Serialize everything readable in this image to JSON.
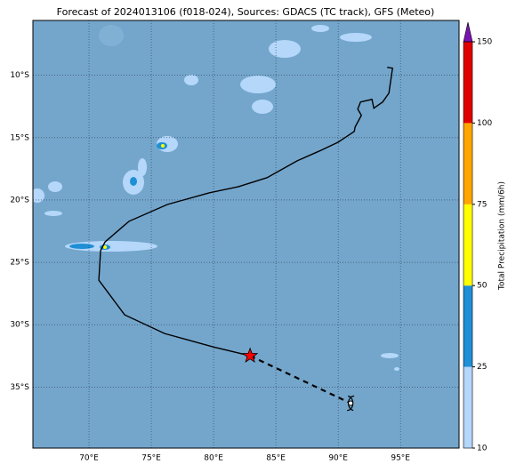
{
  "chart_data": {
    "type": "map",
    "title": "Forecast of 2024013106 (f018-024), Sources: GDACS (TC track), GFS (Meteo)",
    "xlim": [
      65.5,
      99.7
    ],
    "ylim": [
      -39.9,
      -5.6
    ],
    "xticks": [
      {
        "value": 70,
        "label": "70°E"
      },
      {
        "value": 75,
        "label": "75°E"
      },
      {
        "value": 80,
        "label": "80°E"
      },
      {
        "value": 85,
        "label": "85°E"
      },
      {
        "value": 90,
        "label": "90°E"
      },
      {
        "value": 95,
        "label": "95°E"
      }
    ],
    "yticks": [
      {
        "value": -10,
        "label": "10°S"
      },
      {
        "value": -15,
        "label": "15°S"
      },
      {
        "value": -20,
        "label": "20°S"
      },
      {
        "value": -25,
        "label": "25°S"
      },
      {
        "value": -30,
        "label": "30°S"
      },
      {
        "value": -35,
        "label": "35°S"
      }
    ],
    "grid": true,
    "track": {
      "color": "#000000",
      "lon": [
        93.93,
        94.36,
        94.07,
        93.57,
        92.86,
        92.71,
        91.79,
        91.57,
        91.86,
        91.36,
        91.29,
        90.0,
        88.5,
        86.71,
        84.29,
        82.0,
        79.64,
        76.29,
        73.21,
        71.29,
        70.93,
        70.79,
        72.86,
        76.07,
        80.0,
        82.93
      ],
      "lat": [
        -9.36,
        -9.43,
        -11.43,
        -12.14,
        -12.64,
        -11.93,
        -12.14,
        -12.71,
        -13.21,
        -14.14,
        -14.5,
        -15.36,
        -16.07,
        -16.86,
        -18.21,
        -18.93,
        -19.43,
        -20.36,
        -21.71,
        -23.36,
        -24.07,
        -26.43,
        -29.21,
        -30.71,
        -31.79,
        -32.5
      ]
    },
    "forecast_track": {
      "color": "#000000",
      "lon": [
        82.93,
        91.0
      ],
      "lat": [
        -32.5,
        -36.3
      ]
    },
    "marker_color": "#ff0000",
    "colorbar": {
      "label": "Total Precipitation (mm/6h)",
      "ticks": [
        10,
        25,
        50,
        75,
        100,
        150
      ],
      "colors": [
        "#b4d7fa",
        "#1f8fd6",
        "#ffff00",
        "#ffa500",
        "#e00000"
      ],
      "extend_color": "#7b12b4"
    }
  }
}
